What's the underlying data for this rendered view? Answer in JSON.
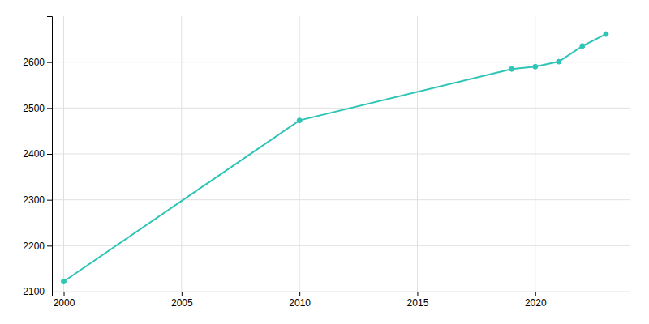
{
  "chart_data": {
    "type": "line",
    "x": [
      2000,
      2010,
      2019,
      2020,
      2021,
      2022,
      2023
    ],
    "values": [
      2122,
      2473,
      2585,
      2590,
      2601,
      2635,
      2661
    ],
    "color": "#2ec4b6",
    "marker": "circle",
    "xlim": [
      1999.5,
      2024.0
    ],
    "ylim": [
      2100,
      2700
    ],
    "xticks": [
      2000,
      2005,
      2010,
      2015,
      2020
    ],
    "yticks": [
      2100,
      2200,
      2300,
      2400,
      2500,
      2600
    ],
    "grid": true
  }
}
